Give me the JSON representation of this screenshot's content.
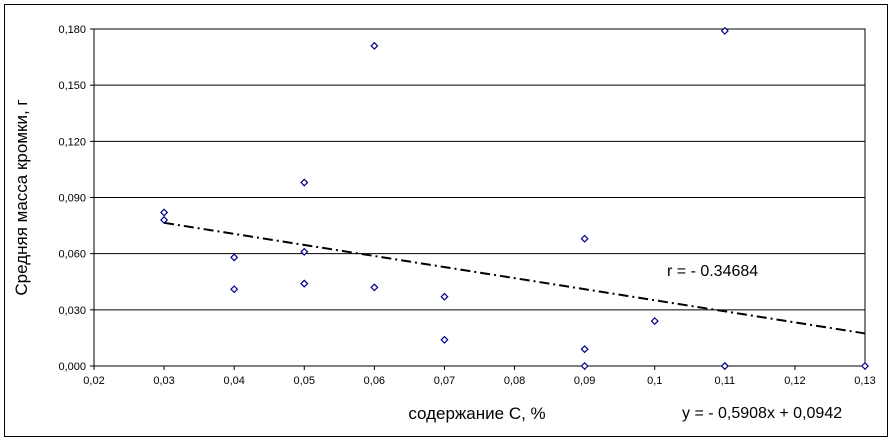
{
  "chart_data": {
    "type": "scatter",
    "xlabel": "содержание С, %",
    "ylabel": "Средняя масса кромки, г",
    "xlim": [
      0.02,
      0.13
    ],
    "ylim": [
      0,
      0.18
    ],
    "x_ticks": [
      "0,02",
      "0,03",
      "0,04",
      "0,05",
      "0,06",
      "0,07",
      "0,08",
      "0,09",
      "0,1",
      "0,11",
      "0,12",
      "0,13"
    ],
    "y_ticks": [
      "0,000",
      "0,030",
      "0,060",
      "0,090",
      "0,120",
      "0,150",
      "0,180"
    ],
    "grid": "horizontal",
    "marker": "diamond",
    "marker_color": "#00008b",
    "series": [
      {
        "points": [
          {
            "x": 0.03,
            "y": 0.082
          },
          {
            "x": 0.03,
            "y": 0.078
          },
          {
            "x": 0.04,
            "y": 0.058
          },
          {
            "x": 0.04,
            "y": 0.041
          },
          {
            "x": 0.05,
            "y": 0.098
          },
          {
            "x": 0.05,
            "y": 0.061
          },
          {
            "x": 0.05,
            "y": 0.044
          },
          {
            "x": 0.05,
            "y": 0.044
          },
          {
            "x": 0.06,
            "y": 0.171
          },
          {
            "x": 0.06,
            "y": 0.042
          },
          {
            "x": 0.07,
            "y": 0.037
          },
          {
            "x": 0.07,
            "y": 0.014
          },
          {
            "x": 0.09,
            "y": 0.068
          },
          {
            "x": 0.09,
            "y": 0.009
          },
          {
            "x": 0.09,
            "y": 0.0
          },
          {
            "x": 0.1,
            "y": 0.024
          },
          {
            "x": 0.11,
            "y": 0.179
          },
          {
            "x": 0.11,
            "y": 0.0
          },
          {
            "x": 0.11,
            "y": 0.0
          },
          {
            "x": 0.13,
            "y": 0.0
          }
        ]
      }
    ],
    "trendline": {
      "style": "dash-dot",
      "slope": -0.5908,
      "intercept": 0.0942,
      "x_range": [
        0.03,
        0.13
      ],
      "equation": "y = - 0,5908x + 0,0942",
      "r_label": "r = - 0.34684"
    }
  }
}
